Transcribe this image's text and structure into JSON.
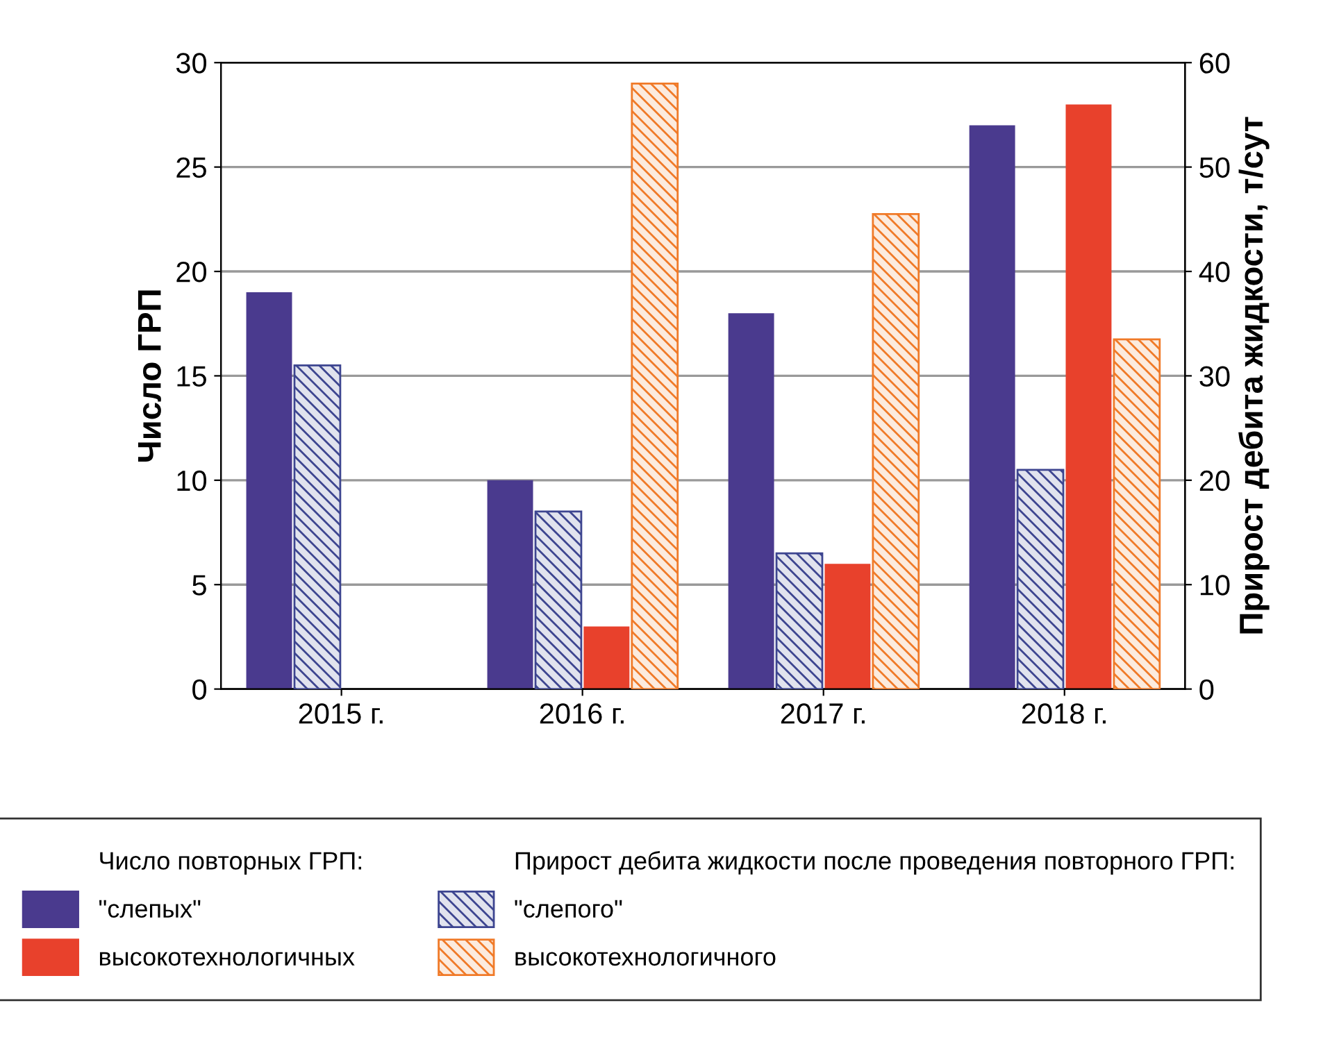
{
  "chart_data": {
    "type": "bar",
    "ylabel": "Число ГРП",
    "y2label": "Прирост дебита жидкости, т/сут",
    "categories": [
      "2015 г.",
      "2016 г.",
      "2017 г.",
      "2018 г."
    ],
    "series": [
      {
        "name": "\"слепых\"",
        "color": "#4a3a8e",
        "values": [
          19,
          10,
          18,
          27
        ]
      },
      {
        "name": "\"слепого\"",
        "color": "#3d4590",
        "values": [
          31,
          17,
          13,
          21
        ],
        "axis": "y2"
      },
      {
        "name": "высокотехнологичных",
        "color": "#e8412c",
        "values": [
          null,
          3,
          6,
          28
        ]
      },
      {
        "name": "высокотехнологичного",
        "color": "#f07a28",
        "values": [
          null,
          58,
          45.5,
          33.5
        ],
        "axis": "y2"
      }
    ],
    "annotations": [
      "Число повторных ГРП:",
      "Прирост дебита жидкости после проведения повторного ГРП:"
    ],
    "ylim": [
      0,
      30
    ],
    "yticks": [
      0,
      5,
      10,
      15,
      20,
      25,
      30
    ],
    "y2lim": [
      0,
      60
    ],
    "y2ticks": [
      0,
      10,
      20,
      30,
      40,
      50,
      60
    ],
    "grid": "y",
    "legend": "bottom"
  }
}
